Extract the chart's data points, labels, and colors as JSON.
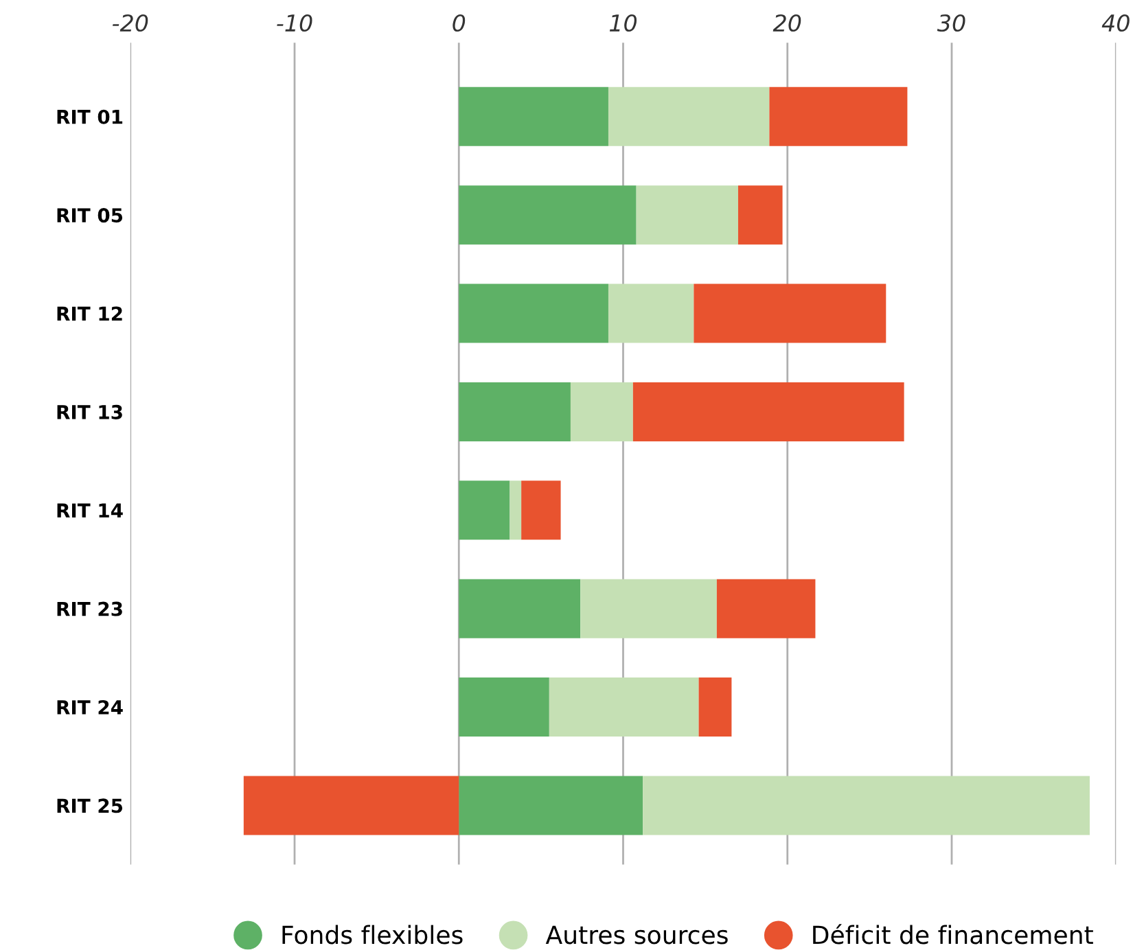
{
  "chart_data": {
    "type": "bar",
    "orientation": "horizontal",
    "stacked": true,
    "categories": [
      "RIT 01",
      "RIT 05",
      "RIT 12",
      "RIT 13",
      "RIT 14",
      "RIT 23",
      "RIT 24",
      "RIT 25"
    ],
    "series": [
      {
        "name": "Fonds flexibles",
        "color": "#5eb166",
        "values": [
          9.1,
          10.8,
          9.1,
          6.8,
          3.1,
          7.4,
          5.5,
          11.2
        ]
      },
      {
        "name": "Autres sources",
        "color": "#c5e0b4",
        "values": [
          9.8,
          6.2,
          5.2,
          3.8,
          0.7,
          8.3,
          9.1,
          27.2
        ]
      },
      {
        "name": "Déficit de financement",
        "color": "#e8532f",
        "values": [
          8.4,
          2.7,
          11.7,
          16.5,
          2.4,
          6.0,
          2.0,
          -13.1
        ]
      }
    ],
    "xlim": [
      -20,
      40
    ],
    "xticks": [
      -20,
      -10,
      0,
      10,
      20,
      30,
      40
    ],
    "grid": "x",
    "legend": "bottom"
  }
}
